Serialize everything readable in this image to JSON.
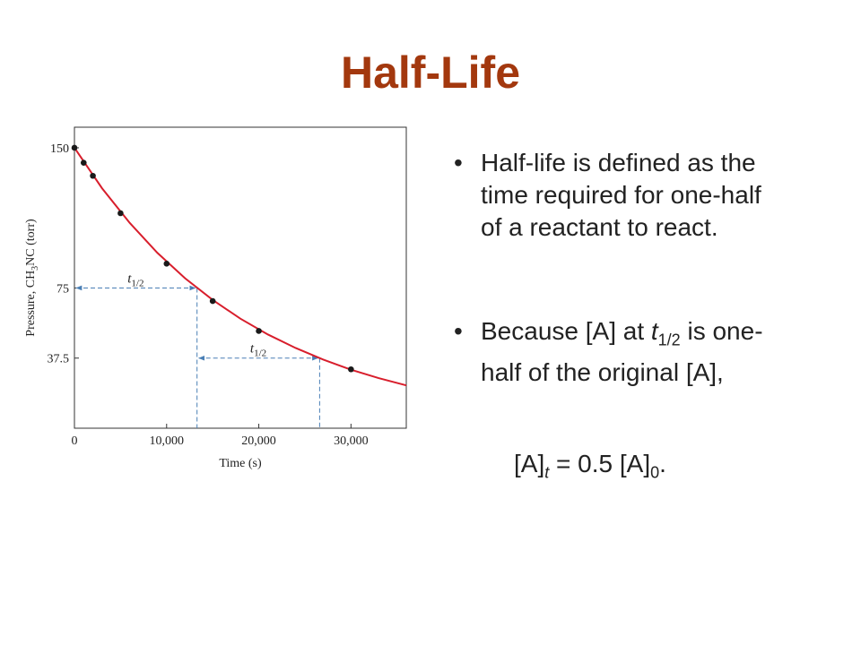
{
  "slide": {
    "title": "Half-Life",
    "bullets": [
      [
        "Half-life is defined as the time required for one-half of a reactant to react."
      ],
      [
        "Because [A] at ",
        "t",
        "1/2",
        " is one-half of the original [A],"
      ]
    ],
    "equation": [
      "[A]",
      "t",
      " = 0.5 [A]",
      "0",
      "."
    ]
  },
  "chart_data": {
    "type": "scatter",
    "x_label": "Time (s)",
    "y_label": [
      "Pressure, CH",
      "3",
      "NC (torr)"
    ],
    "xlim": [
      0,
      36000
    ],
    "ylim": [
      0,
      161
    ],
    "xticks": [
      0,
      {
        "value": 10000,
        "label": "10,000"
      },
      {
        "value": 20000,
        "label": "20,000"
      },
      {
        "value": 30000,
        "label": "30,000"
      }
    ],
    "yticks": [
      37.5,
      75,
      150
    ],
    "series": [
      {
        "mode": "markers",
        "color": "#1a1a1a",
        "x": [
          0,
          1000,
          2000,
          5000,
          10000,
          15000,
          20000,
          30000
        ],
        "values": [
          150,
          142,
          135,
          115,
          88,
          68,
          52,
          31.5
        ]
      },
      {
        "mode": "line",
        "color": "#d81e2c",
        "x": [
          0,
          3000,
          6000,
          9000,
          12000,
          15000,
          18000,
          21000,
          24000,
          27000,
          30000,
          33000,
          36000
        ],
        "values": [
          150,
          128.3,
          109.8,
          93.8,
          80.2,
          68.6,
          58.6,
          50.1,
          42.9,
          36.7,
          31.3,
          26.8,
          22.9
        ]
      }
    ],
    "annotations": [
      {
        "base": "t",
        "sub": "1/2",
        "x_start": 0,
        "x_end": 13300,
        "y": 75
      },
      {
        "base": "t",
        "sub": "1/2",
        "x_start": 13300,
        "x_end": 26600,
        "y": 37.5
      }
    ],
    "annotation_color": "#4a7fb5"
  }
}
